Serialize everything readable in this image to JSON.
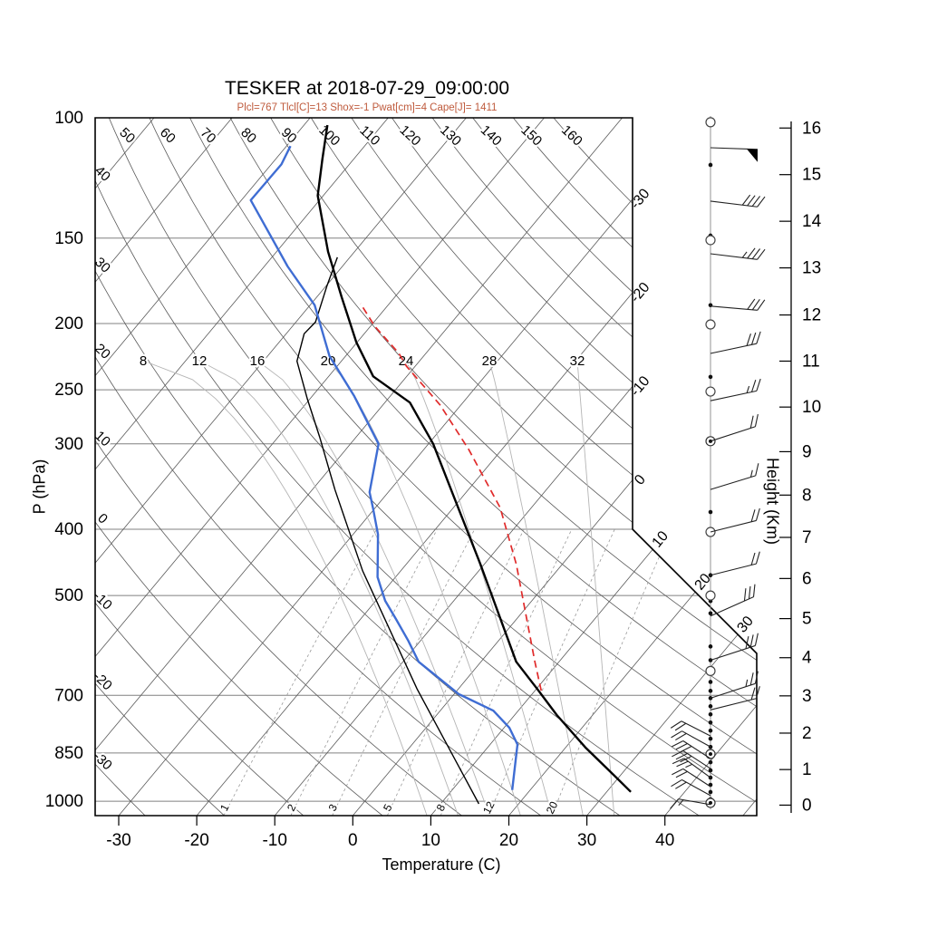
{
  "chart_data": {
    "type": "skewt_log_p_sounding",
    "title": "TESKER at 2018-07-29_09:00:00",
    "subtitle": "Plcl=767 Tlcl[C]=13 Shox=-1 Pwat[cm]=4 Cape[J]= 1411",
    "subtitle_color": "#bf5b3d",
    "station": "TESKER",
    "datetime": "2018-07-29_09:00:00",
    "parameters": {
      "Plcl": 767,
      "Tlcl_C": 13,
      "Shox": -1,
      "Pwat_cm": 4,
      "Cape_J": 1411
    },
    "axes": {
      "pressure": {
        "label": "P (hPa)",
        "scale": "log",
        "range": [
          100,
          1050
        ],
        "ticks": [
          100,
          150,
          200,
          250,
          300,
          400,
          500,
          700,
          850,
          1000
        ]
      },
      "temperature": {
        "label": "Temperature (C)",
        "units": "C",
        "ticks": [
          -30,
          -20,
          -10,
          0,
          10,
          20,
          30,
          40
        ]
      },
      "height": {
        "label": "Height (Km)",
        "ticks": [
          0,
          1,
          2,
          3,
          4,
          5,
          6,
          7,
          8,
          9,
          10,
          11,
          12,
          13,
          14,
          15,
          16
        ]
      }
    },
    "grid": {
      "isobars": [
        100,
        150,
        200,
        250,
        300,
        400,
        500,
        700,
        850,
        1000
      ],
      "isotherms": {
        "start": -110,
        "end": 50,
        "step": 10
      },
      "isotherm_edge_labels": [
        -30,
        -20,
        -10,
        0,
        10,
        20,
        30
      ],
      "dry_adiabats": {
        "start": -30,
        "end": 160,
        "step": 10,
        "top_labels": [
          50,
          60,
          70,
          80,
          90,
          100,
          110,
          120,
          130,
          140,
          150,
          160
        ],
        "left_labels": [
          40,
          30,
          20,
          10,
          0,
          -10,
          -20,
          -30
        ]
      },
      "moist_adiabats": [
        8,
        12,
        16,
        20,
        24,
        28,
        32
      ],
      "mixing_ratio_g_kg": [
        1,
        2,
        3,
        5,
        8,
        12,
        20
      ]
    },
    "colors": {
      "temperature": "#000000",
      "dewpoint": "#3f6dd3",
      "parcel": "#e02a2a",
      "aux_profile": "#000000",
      "isobar": "#808080",
      "isotherm": "#5a5a5a",
      "dry_adiabat": "#5a5a5a",
      "moist_adiabat": "#b5b5b5",
      "mixing_ratio": "#9a9a9a"
    },
    "profiles": {
      "temperature": [
        [
          969,
          33.1
        ],
        [
          926,
          29.9
        ],
        [
          834,
          22.5
        ],
        [
          748,
          15.4
        ],
        [
          685,
          10.1
        ],
        [
          625,
          4.5
        ],
        [
          450,
          -10.5
        ],
        [
          357,
          -21.3
        ],
        [
          300,
          -29.4
        ],
        [
          261,
          -36.8
        ],
        [
          239,
          -44.3
        ],
        [
          213,
          -50.1
        ],
        [
          183,
          -56.8
        ],
        [
          157,
          -63.4
        ],
        [
          130,
          -70.7
        ],
        [
          115,
          -74.0
        ],
        [
          102.5,
          -77.0
        ]
      ],
      "dewpoint": [
        [
          963,
          17.7
        ],
        [
          826,
          13.5
        ],
        [
          781,
          10.7
        ],
        [
          737,
          6.8
        ],
        [
          697,
          0.6
        ],
        [
          625,
          -8.0
        ],
        [
          582,
          -11.6
        ],
        [
          541,
          -15.5
        ],
        [
          509,
          -18.8
        ],
        [
          470,
          -22.3
        ],
        [
          407,
          -26.8
        ],
        [
          372,
          -30.3
        ],
        [
          353,
          -32.4
        ],
        [
          300,
          -36.4
        ],
        [
          255,
          -44.7
        ],
        [
          223,
          -52.1
        ],
        [
          188,
          -59.4
        ],
        [
          165,
          -67.0
        ],
        [
          132,
          -78.8
        ],
        [
          117,
          -78.7
        ],
        [
          110,
          -79.5
        ]
      ],
      "parcel": [
        [
          689,
          10.8
        ],
        [
          625,
          6.9
        ],
        [
          450,
          -5.9
        ],
        [
          372,
          -14.0
        ],
        [
          306,
          -24.2
        ],
        [
          263,
          -32.7
        ],
        [
          231,
          -41.1
        ],
        [
          221,
          -43.5
        ],
        [
          202,
          -49.4
        ],
        [
          187,
          -53.7
        ]
      ],
      "aux": [
        [
          1009,
          14.9
        ],
        [
          685,
          -5.3
        ],
        [
          460,
          -24.9
        ],
        [
          350,
          -37.1
        ],
        [
          293,
          -44.7
        ],
        [
          258,
          -50.3
        ],
        [
          227,
          -55.7
        ],
        [
          207,
          -57.7
        ],
        [
          199,
          -57.5
        ],
        [
          176,
          -59.9
        ],
        [
          160,
          -61.6
        ]
      ]
    },
    "wind_column": {
      "barbs": [
        {
          "p": 110.6,
          "a": 2,
          "full": 0,
          "half": 0,
          "flag": 1
        },
        {
          "p": 132.4,
          "a": 7,
          "full": 4,
          "half": 0,
          "flag": 0
        },
        {
          "p": 158.1,
          "a": 7,
          "full": 3,
          "half": 1,
          "flag": 0
        },
        {
          "p": 188.6,
          "a": 5,
          "full": 3,
          "half": 0,
          "flag": 0
        },
        {
          "p": 221.2,
          "a": -12,
          "full": 3,
          "half": 0,
          "flag": 0
        },
        {
          "p": 259.4,
          "a": -12,
          "full": 2,
          "half": 1,
          "flag": 0
        },
        {
          "p": 297.3,
          "a": -18,
          "full": 2,
          "half": 0,
          "flag": 0
        },
        {
          "p": 349.8,
          "a": -17,
          "full": 1,
          "half": 1,
          "flag": 0
        },
        {
          "p": 403.7,
          "a": -14,
          "full": 2,
          "half": 0,
          "flag": 0
        },
        {
          "p": 467.0,
          "a": -14,
          "full": 2,
          "half": 0,
          "flag": 0
        },
        {
          "p": 535.9,
          "a": -24,
          "full": 3,
          "half": 0,
          "flag": 0
        },
        {
          "p": 621.8,
          "a": -18,
          "full": 3,
          "half": 0,
          "flag": 0
        },
        {
          "p": 706.6,
          "a": -18,
          "full": 2,
          "half": 1,
          "flag": 0
        },
        {
          "p": 735.1,
          "a": -14,
          "full": 2,
          "half": 0,
          "flag": 0
        },
        {
          "p": 802.6,
          "a": 207,
          "full": 2,
          "half": 0,
          "flag": 0
        },
        {
          "p": 832.7,
          "a": 209,
          "full": 2,
          "half": 0,
          "flag": 0
        },
        {
          "p": 866.3,
          "a": 213,
          "full": 3,
          "half": 0,
          "flag": 0
        },
        {
          "p": 895.8,
          "a": 213,
          "full": 3,
          "half": 0,
          "flag": 0
        },
        {
          "p": 923.5,
          "a": 216,
          "full": 2,
          "half": 1,
          "flag": 0
        },
        {
          "p": 952.0,
          "a": 213,
          "full": 2,
          "half": 0,
          "flag": 0
        },
        {
          "p": 981.3,
          "a": 209,
          "full": 2,
          "half": 0,
          "flag": 0
        },
        {
          "p": 1011.6,
          "a": 190,
          "full": 1,
          "half": 1,
          "flag": 0
        }
      ],
      "dots_p": [
        117.2,
        148.7,
        188,
        239.4,
        377.5,
        467,
        509.5,
        531,
        593.7,
        621.8,
        650.7,
        669,
        689.5,
        706.6,
        726.2,
        746.4,
        767.2,
        788.3,
        810,
        832.7,
        855.7,
        877,
        901.3,
        923.5,
        946.3,
        969.6,
        993.4
      ],
      "circles_p": [
        101.5,
        151,
        200.6,
        251.5,
        403.7,
        500,
        644.8
      ],
      "circled_dots_p": [
        297.3,
        853,
        1005.6
      ]
    }
  }
}
